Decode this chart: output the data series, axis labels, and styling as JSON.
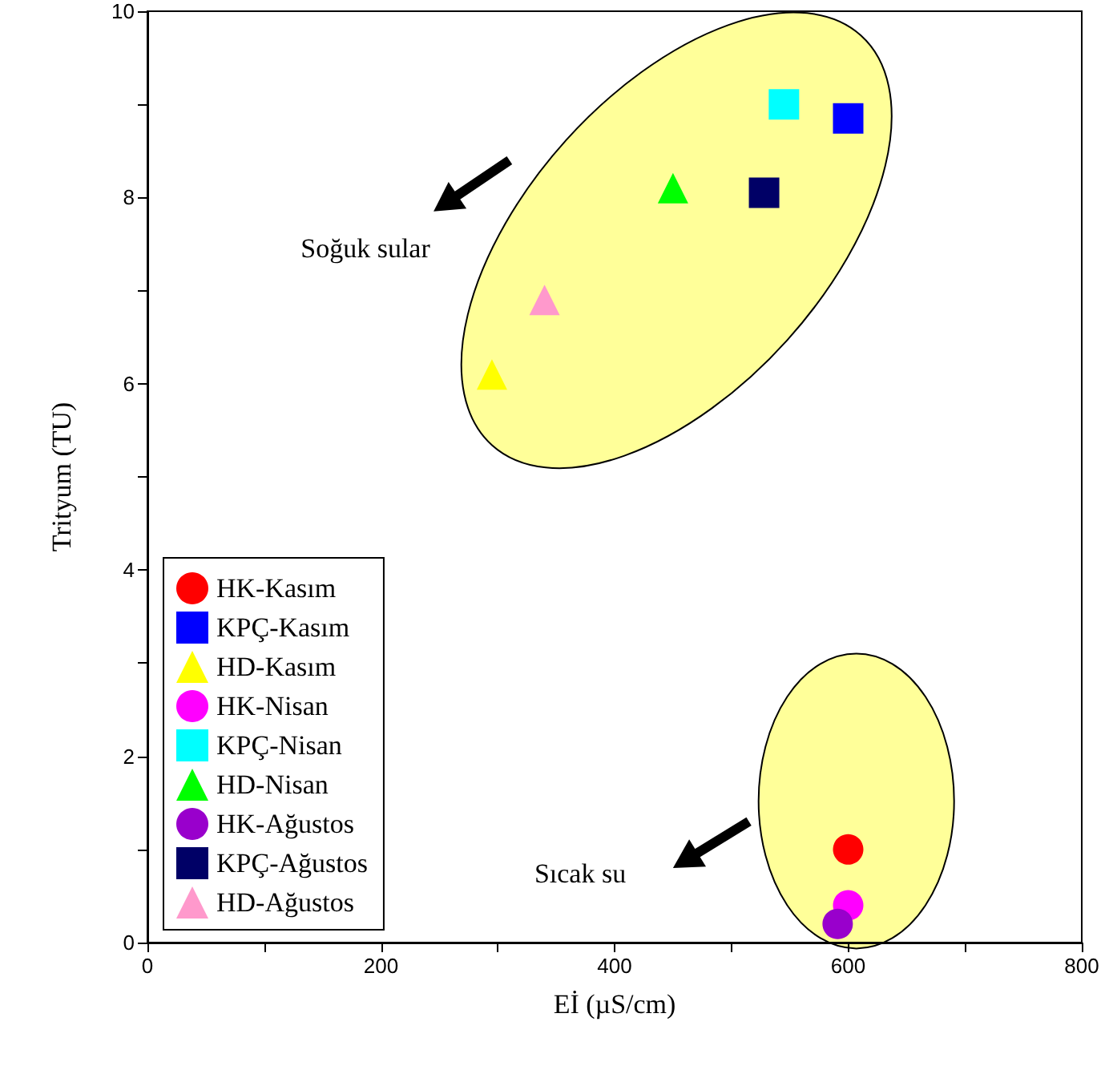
{
  "chart_data": {
    "type": "scatter",
    "xlabel": "Eİ (µS/cm)",
    "ylabel": "Trityum (TU)",
    "xlim": [
      0,
      800
    ],
    "ylim": [
      0,
      10
    ],
    "xticks": [
      0,
      {
        "value": 100,
        "label": null
      },
      200,
      {
        "value": 300,
        "label": null
      },
      400,
      {
        "value": 500,
        "label": null
      },
      600,
      {
        "value": 700,
        "label": null
      },
      800
    ],
    "yticks": [
      0,
      {
        "value": 1,
        "label": null
      },
      2,
      {
        "value": 3,
        "label": null
      },
      4,
      {
        "value": 5,
        "label": null
      },
      6,
      {
        "value": 7,
        "label": null
      },
      8,
      {
        "value": 9,
        "label": null
      },
      10
    ],
    "grid": false,
    "legend": "bottom left",
    "annotations": [
      "Soğuk sular",
      "Sıcak su"
    ],
    "series": [
      {
        "name": "HK-Kasım",
        "color": "#ff0000",
        "marker": "circle",
        "x": [
          600
        ],
        "values": [
          1.0
        ]
      },
      {
        "name": "KPÇ-Kasım",
        "color": "#0000ff",
        "marker": "square",
        "x": [
          600
        ],
        "values": [
          8.85
        ]
      },
      {
        "name": "HD-Kasım",
        "color": "#ffff00",
        "marker": "triangle",
        "x": [
          295
        ],
        "values": [
          6.1
        ]
      },
      {
        "name": "HK-Nisan",
        "color": "#ff00ff",
        "marker": "circle",
        "x": [
          600
        ],
        "values": [
          0.4
        ]
      },
      {
        "name": "KPÇ-Nisan",
        "color": "#00ffff",
        "marker": "square",
        "x": [
          545
        ],
        "values": [
          9.0
        ]
      },
      {
        "name": "HD-Nisan",
        "color": "#00ff00",
        "marker": "triangle",
        "x": [
          450
        ],
        "values": [
          8.1
        ]
      },
      {
        "name": "HK-Ağustos",
        "color": "#9900cc",
        "marker": "circle",
        "x": [
          591
        ],
        "values": [
          0.2
        ]
      },
      {
        "name": "KPÇ-Ağustos",
        "color": "#000066",
        "marker": "square",
        "x": [
          528
        ],
        "values": [
          8.05
        ]
      },
      {
        "name": "HD-Ağustos",
        "color": "#ff99cc",
        "marker": "triangle",
        "x": [
          340
        ],
        "values": [
          6.9
        ]
      }
    ]
  }
}
